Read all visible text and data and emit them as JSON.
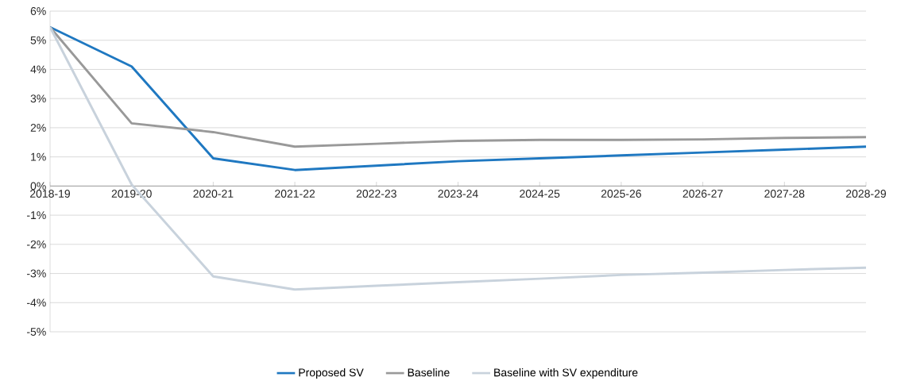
{
  "chart_data": {
    "type": "line",
    "categories": [
      "2018-19",
      "2019-20",
      "2020-21",
      "2021-22",
      "2022-23",
      "2023-24",
      "2024-25",
      "2025-26",
      "2026-27",
      "2027-28",
      "2028-29"
    ],
    "series": [
      {
        "name": "Proposed SV",
        "color": "#1f78c1",
        "values": [
          5.45,
          4.1,
          0.95,
          0.55,
          0.7,
          0.85,
          0.95,
          1.05,
          1.15,
          1.25,
          1.35
        ]
      },
      {
        "name": "Baseline",
        "color": "#999999",
        "values": [
          5.45,
          2.15,
          1.85,
          1.35,
          1.45,
          1.55,
          1.58,
          1.58,
          1.6,
          1.65,
          1.68
        ]
      },
      {
        "name": "Baseline with SV expenditure",
        "color": "#c8d2dc",
        "values": [
          5.45,
          0.05,
          -3.1,
          -3.55,
          -3.42,
          -3.3,
          -3.18,
          -3.05,
          -2.97,
          -2.88,
          -2.8
        ]
      }
    ],
    "ylim": [
      -5,
      6
    ],
    "yticks": [
      {
        "value": -5,
        "label": "-5%"
      },
      {
        "value": -4,
        "label": "-4%"
      },
      {
        "value": -3,
        "label": "-3%"
      },
      {
        "value": -2,
        "label": "-2%"
      },
      {
        "value": -1,
        "label": "-1%"
      },
      {
        "value": 0,
        "label": "0%"
      },
      {
        "value": 1,
        "label": "1%"
      },
      {
        "value": 2,
        "label": "2%"
      },
      {
        "value": 3,
        "label": "3%"
      },
      {
        "value": 4,
        "label": "4%"
      },
      {
        "value": 5,
        "label": "5%"
      },
      {
        "value": 6,
        "label": "6%"
      }
    ],
    "grid": "y",
    "legend": "bottom",
    "marker": "none",
    "line_style": "solid"
  }
}
